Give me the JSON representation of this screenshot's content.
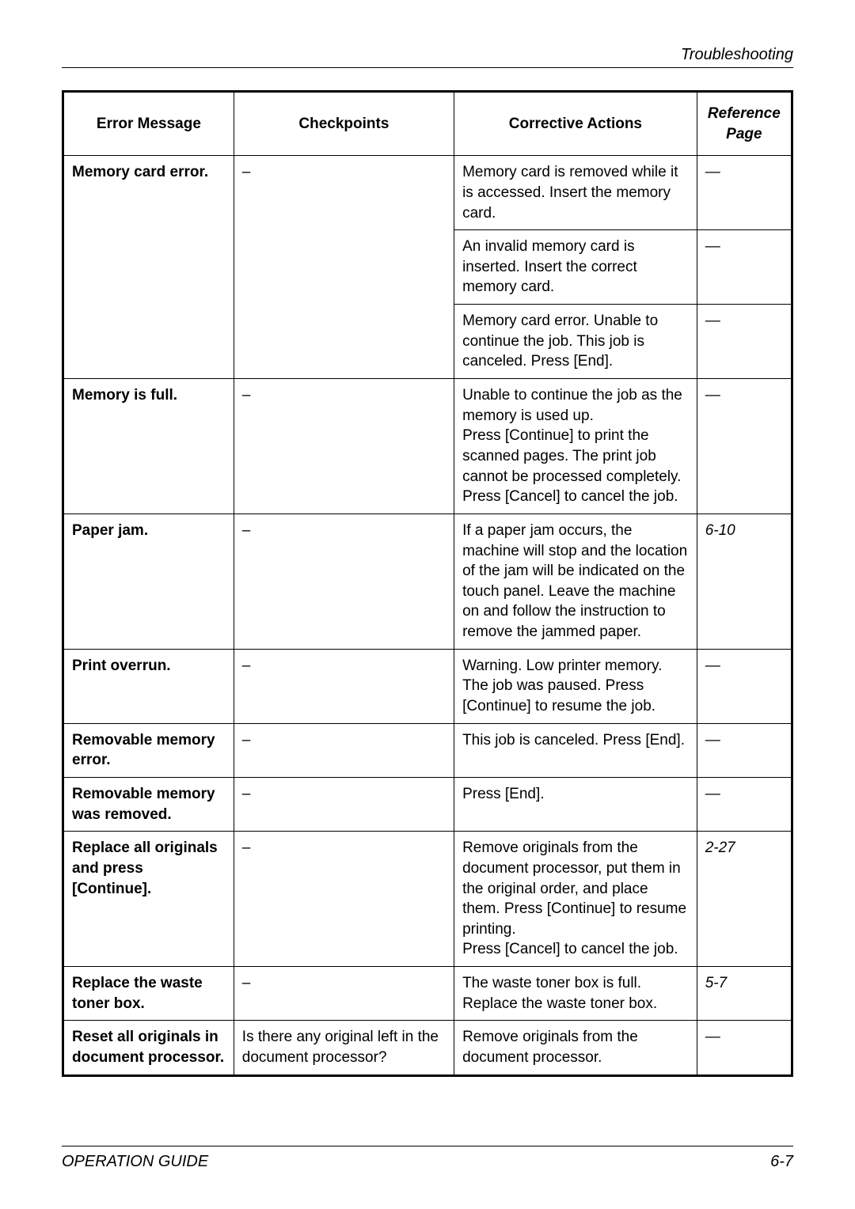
{
  "header": {
    "section_title": "Troubleshooting"
  },
  "table": {
    "headers": {
      "error_message": "Error Message",
      "checkpoints": "Checkpoints",
      "corrective_actions": "Corrective Actions",
      "reference_page": "Reference Page"
    },
    "rows": [
      {
        "error": "Memory card error.",
        "checkpoint": "–",
        "action": "Memory card is removed while it is accessed. Insert the memory card.",
        "ref": "—",
        "error_rowspan": 3,
        "checkpoint_rowspan": 3
      },
      {
        "action": "An invalid memory card is inserted. Insert the correct memory card.",
        "ref": "—"
      },
      {
        "action": "Memory card error. Unable to continue the job. This job is canceled. Press [End].",
        "ref": "—"
      },
      {
        "error": "Memory is full.",
        "checkpoint": "–",
        "action": "Unable to continue the job as the memory is used up.\nPress [Continue] to print the scanned pages. The print job cannot be processed completely. Press [Cancel] to cancel the job.",
        "ref": "—"
      },
      {
        "error": "Paper jam.",
        "checkpoint": "–",
        "action": "If a paper jam occurs, the machine will stop and the location of the jam will be indicated on the touch panel. Leave the machine on and follow the instruction to remove the jammed paper.",
        "ref": "6-10"
      },
      {
        "error": "Print overrun.",
        "checkpoint": "–",
        "action": "Warning. Low printer memory. The job was paused. Press [Continue] to resume the job.",
        "ref": "—"
      },
      {
        "error": "Removable memory error.",
        "checkpoint": "–",
        "action": "This job is canceled. Press [End].",
        "ref": "—"
      },
      {
        "error": "Removable memory was removed.",
        "checkpoint": "–",
        "action": "Press [End].",
        "ref": "—"
      },
      {
        "error": "Replace all originals and press [Continue].",
        "checkpoint": "–",
        "action": "Remove originals from the document processor, put them in the original order, and place them. Press [Continue] to resume printing.\nPress [Cancel] to cancel the job.",
        "ref": "2-27"
      },
      {
        "error": "Replace the waste toner box.",
        "checkpoint": "–",
        "action": "The waste toner box is full. Replace the waste toner box.",
        "ref": "5-7"
      },
      {
        "error": "Reset all originals in document processor.",
        "checkpoint": "Is there any original left in the document processor?",
        "action": "Remove originals from the document processor.",
        "ref": "—"
      }
    ]
  },
  "footer": {
    "left": "OPERATION GUIDE",
    "right": "6-7"
  }
}
